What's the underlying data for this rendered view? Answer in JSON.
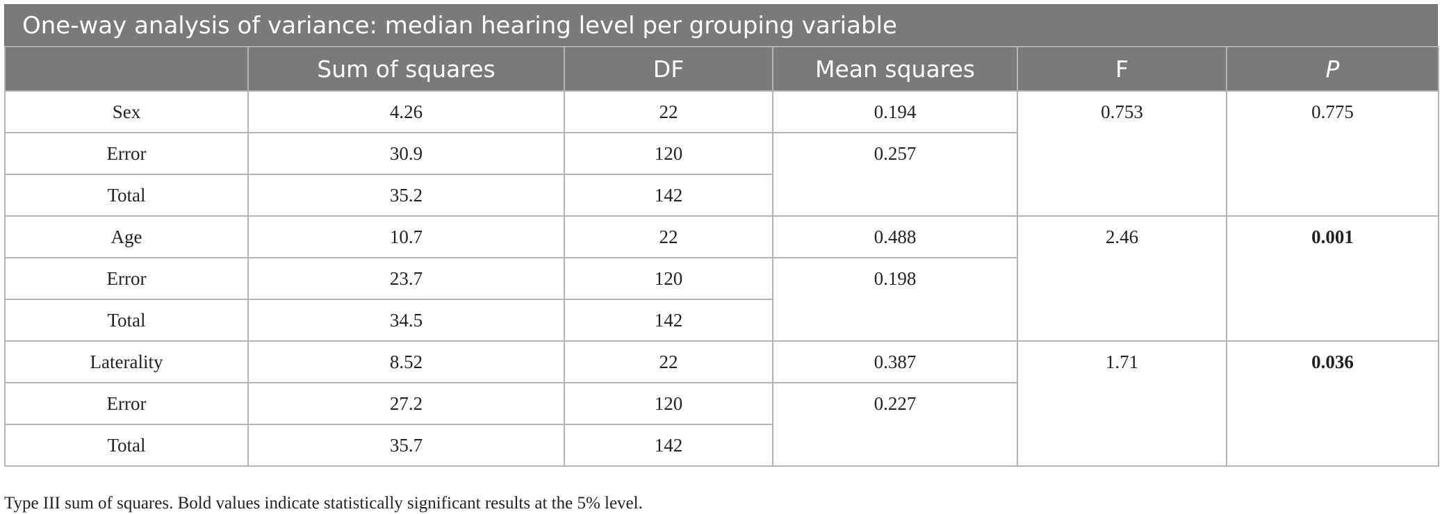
{
  "title": "One-way analysis of variance: median hearing level per grouping variable",
  "headers": [
    "",
    "Sum of squares",
    "DF",
    "Mean squares",
    "F",
    "P"
  ],
  "groups": [
    {
      "rows": [
        {
          "label": "Sex",
          "ss": "4.26",
          "df": "22",
          "ms": "0.194"
        },
        {
          "label": "Error",
          "ss": "30.9",
          "df": "120",
          "ms": "0.257"
        },
        {
          "label": "Total",
          "ss": "35.2",
          "df": "142"
        }
      ],
      "f": "0.753",
      "p": "0.775"
    },
    {
      "rows": [
        {
          "label": "Age",
          "ss": "10.7",
          "df": "22",
          "ms": "0.488"
        },
        {
          "label": "Error",
          "ss": "23.7",
          "df": "120",
          "ms": "0.198"
        },
        {
          "label": "Total",
          "ss": "34.5",
          "df": "142"
        }
      ],
      "f": "2.46",
      "p": "0.001"
    },
    {
      "rows": [
        {
          "label": "Laterality",
          "ss": "8.52",
          "df": "22",
          "ms": "0.387"
        },
        {
          "label": "Error",
          "ss": "27.2",
          "df": "120",
          "ms": "0.227"
        },
        {
          "label": "Total",
          "ss": "35.7",
          "df": "142"
        }
      ],
      "f": "1.71",
      "p": "0.036"
    }
  ],
  "footnote": "Type III sum of squares. Bold values indicate statistically significant results at the 5% level."
}
